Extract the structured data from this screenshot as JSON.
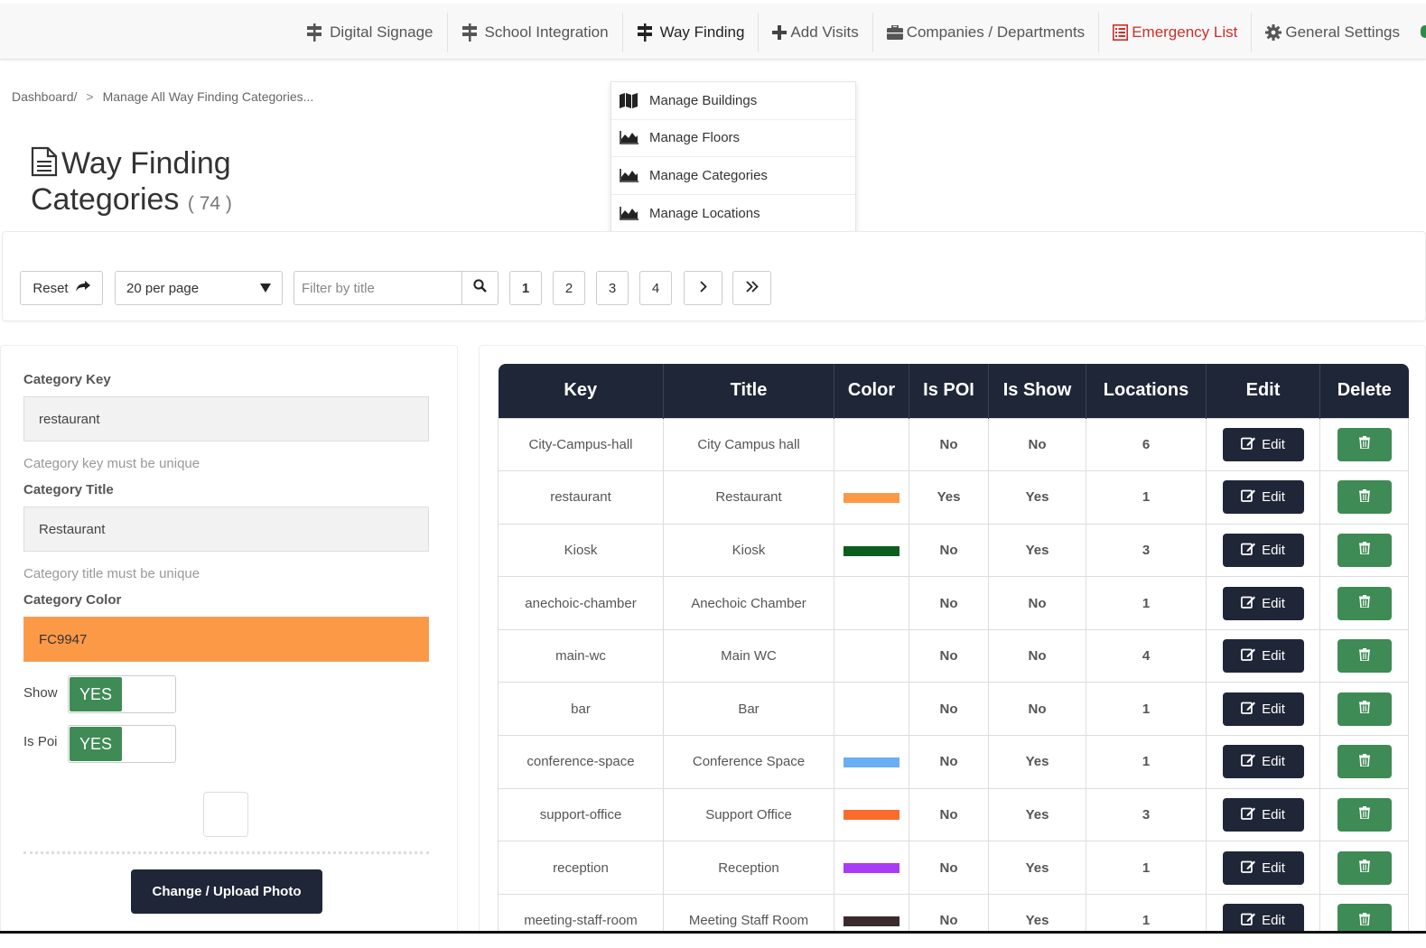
{
  "nav": {
    "items": [
      {
        "label": "Digital Signage",
        "icon": "signpost-icon"
      },
      {
        "label": "School Integration",
        "icon": "signpost-icon"
      },
      {
        "label": "Way Finding",
        "icon": "signpost-icon"
      },
      {
        "label": "Add Visits",
        "icon": "plus-icon"
      },
      {
        "label": "Companies / Departments",
        "icon": "briefcase-icon"
      },
      {
        "label": "Emergency List",
        "icon": "list-icon"
      },
      {
        "label": "General Settings",
        "icon": "gear-icon"
      }
    ]
  },
  "breadcrumb": {
    "root": "Dashboard/",
    "separator": ">",
    "current": "Manage All Way Finding Categories..."
  },
  "page": {
    "title_line1": "Way Finding",
    "title_line2": "Categories",
    "count": "( 74 )"
  },
  "dropdown": {
    "items": [
      {
        "label": "Manage Buildings",
        "icon": "map-icon"
      },
      {
        "label": "Manage Floors",
        "icon": "area-chart-icon"
      },
      {
        "label": "Manage Categories",
        "icon": "area-chart-icon"
      },
      {
        "label": "Manage Locations",
        "icon": "area-chart-icon"
      }
    ]
  },
  "filters": {
    "reset_label": "Reset",
    "per_page": "20 per page",
    "search_placeholder": "Filter by title",
    "pages": [
      "1",
      "2",
      "3",
      "4"
    ],
    "active_page": "1"
  },
  "form": {
    "key_label": "Category Key",
    "key_value": "restaurant",
    "key_help": "Category key must be unique",
    "title_label": "Category Title",
    "title_value": "Restaurant",
    "title_help": "Category title must be unique",
    "color_label": "Category Color",
    "color_value": "FC9947",
    "show_label": "Show",
    "show_value": "YES",
    "poi_label": "Is Poi",
    "poi_value": "YES",
    "upload_label": "Change / Upload Photo"
  },
  "table": {
    "columns": [
      "Key",
      "Title",
      "Color",
      "Is POI",
      "Is Show",
      "Locations",
      "Edit",
      "Delete"
    ],
    "edit_label": "Edit",
    "rows": [
      {
        "key": "City-Campus-hall",
        "title": "City Campus hall",
        "color": "",
        "poi": "No",
        "show": "No",
        "locations": "6"
      },
      {
        "key": "restaurant",
        "title": "Restaurant",
        "color": "#FC9947",
        "poi": "Yes",
        "show": "Yes",
        "locations": "1"
      },
      {
        "key": "Kiosk",
        "title": "Kiosk",
        "color": "#0B5E1E",
        "poi": "No",
        "show": "Yes",
        "locations": "3"
      },
      {
        "key": "anechoic-chamber",
        "title": "Anechoic Chamber",
        "color": "",
        "poi": "No",
        "show": "No",
        "locations": "1"
      },
      {
        "key": "main-wc",
        "title": "Main WC",
        "color": "",
        "poi": "No",
        "show": "No",
        "locations": "4"
      },
      {
        "key": "bar",
        "title": "Bar",
        "color": "",
        "poi": "No",
        "show": "No",
        "locations": "1"
      },
      {
        "key": "conference-space",
        "title": "Conference Space",
        "color": "#6AAEF5",
        "poi": "No",
        "show": "Yes",
        "locations": "1"
      },
      {
        "key": "support-office",
        "title": "Support Office",
        "color": "#FB6B2C",
        "poi": "No",
        "show": "Yes",
        "locations": "3"
      },
      {
        "key": "reception",
        "title": "Reception",
        "color": "#A93BF5",
        "poi": "No",
        "show": "Yes",
        "locations": "1"
      },
      {
        "key": "meeting-staff-room",
        "title": "Meeting Staff Room",
        "color": "#3A2A2E",
        "poi": "No",
        "show": "Yes",
        "locations": "1"
      }
    ]
  },
  "colors": {
    "dark": "#1f2637",
    "green": "#3e8b55",
    "no": "#d0021b",
    "yes": "#1e7d22",
    "danger_nav": "#c9302c"
  }
}
